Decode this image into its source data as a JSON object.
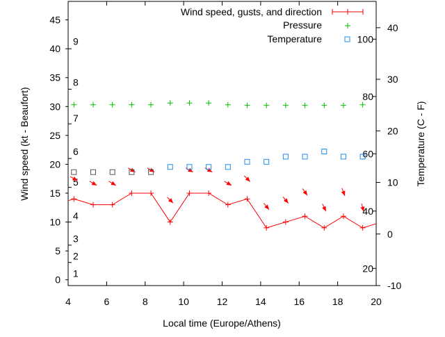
{
  "chart_data": {
    "type": "line",
    "title": "",
    "xlabel": "Local time (Europe/Athens)",
    "ylabel": "Wind speed (kt - Beaufort)",
    "y2label": "Temperature (C - F)",
    "xlim": [
      4,
      20
    ],
    "ylim": [
      -1,
      48.2
    ],
    "y2lim": [
      -10,
      45.1
    ],
    "xticks": [
      4,
      6,
      8,
      10,
      12,
      14,
      16,
      18,
      20
    ],
    "yticks": [
      0,
      5,
      10,
      15,
      20,
      25,
      30,
      35,
      40,
      45
    ],
    "y2ticks": [
      -10,
      0,
      10,
      20,
      30,
      40
    ],
    "beaufort_labels": [
      {
        "label": "1",
        "kt": 1.1
      },
      {
        "label": "2",
        "kt": 4.1
      },
      {
        "label": "3",
        "kt": 7.1
      },
      {
        "label": "4",
        "kt": 11.1
      },
      {
        "label": "5",
        "kt": 16.9
      },
      {
        "label": "6",
        "kt": 22.2
      },
      {
        "label": "7",
        "kt": 28
      },
      {
        "label": "8",
        "kt": 34.2
      },
      {
        "label": "9",
        "kt": 41.3
      }
    ],
    "beaufort_ticks": [
      3,
      6,
      10,
      16,
      21,
      27,
      33,
      40
    ],
    "fahrenheit_labels": [
      {
        "label": "20",
        "F": 20
      },
      {
        "label": "40",
        "F": 40
      },
      {
        "label": "60",
        "F": 60
      },
      {
        "label": "80",
        "F": 80
      },
      {
        "label": "100",
        "F": 100
      }
    ],
    "legend": {
      "position": "top-right",
      "entries": [
        "Wind speed, gusts, and direction",
        "Pressure",
        "Temperature"
      ]
    },
    "x": [
      4.3,
      5.3,
      6.3,
      7.3,
      8.3,
      9.3,
      10.3,
      11.3,
      12.3,
      13.3,
      14.3,
      15.3,
      16.3,
      17.3,
      18.3,
      19.3
    ],
    "series": [
      {
        "name": "Wind speed, gusts, and direction",
        "axis": "y",
        "color": "#ff0000",
        "values": [
          14,
          13,
          13,
          15,
          15,
          10,
          15,
          15,
          13,
          14,
          9,
          10,
          11,
          9,
          11,
          9
        ],
        "line_end": {
          "x": 20,
          "y": 9.7
        },
        "gusts": [
          17.5,
          16.7,
          16.7,
          19,
          19,
          13.8,
          19,
          19,
          16.7,
          17.5,
          12.7,
          13.8,
          15.2,
          12.5,
          15.2,
          12.5
        ],
        "direction_deg": [
          300,
          300,
          300,
          300,
          300,
          315,
          300,
          300,
          300,
          315,
          320,
          320,
          325,
          335,
          340,
          345
        ]
      },
      {
        "name": "Pressure",
        "axis": "y",
        "color": "#00c000",
        "values": [
          30.3,
          30.3,
          30.3,
          30.3,
          30.3,
          30.6,
          30.6,
          30.6,
          30.3,
          30.2,
          30.2,
          30.2,
          30.2,
          30.2,
          30.2,
          30.3
        ]
      },
      {
        "name": "Temperature",
        "axis": "y2",
        "color": "#1e8cf0",
        "values": [
          12,
          12,
          12,
          12,
          12,
          13,
          13,
          13,
          13,
          14,
          14,
          15,
          15,
          16,
          15,
          15
        ]
      }
    ]
  }
}
